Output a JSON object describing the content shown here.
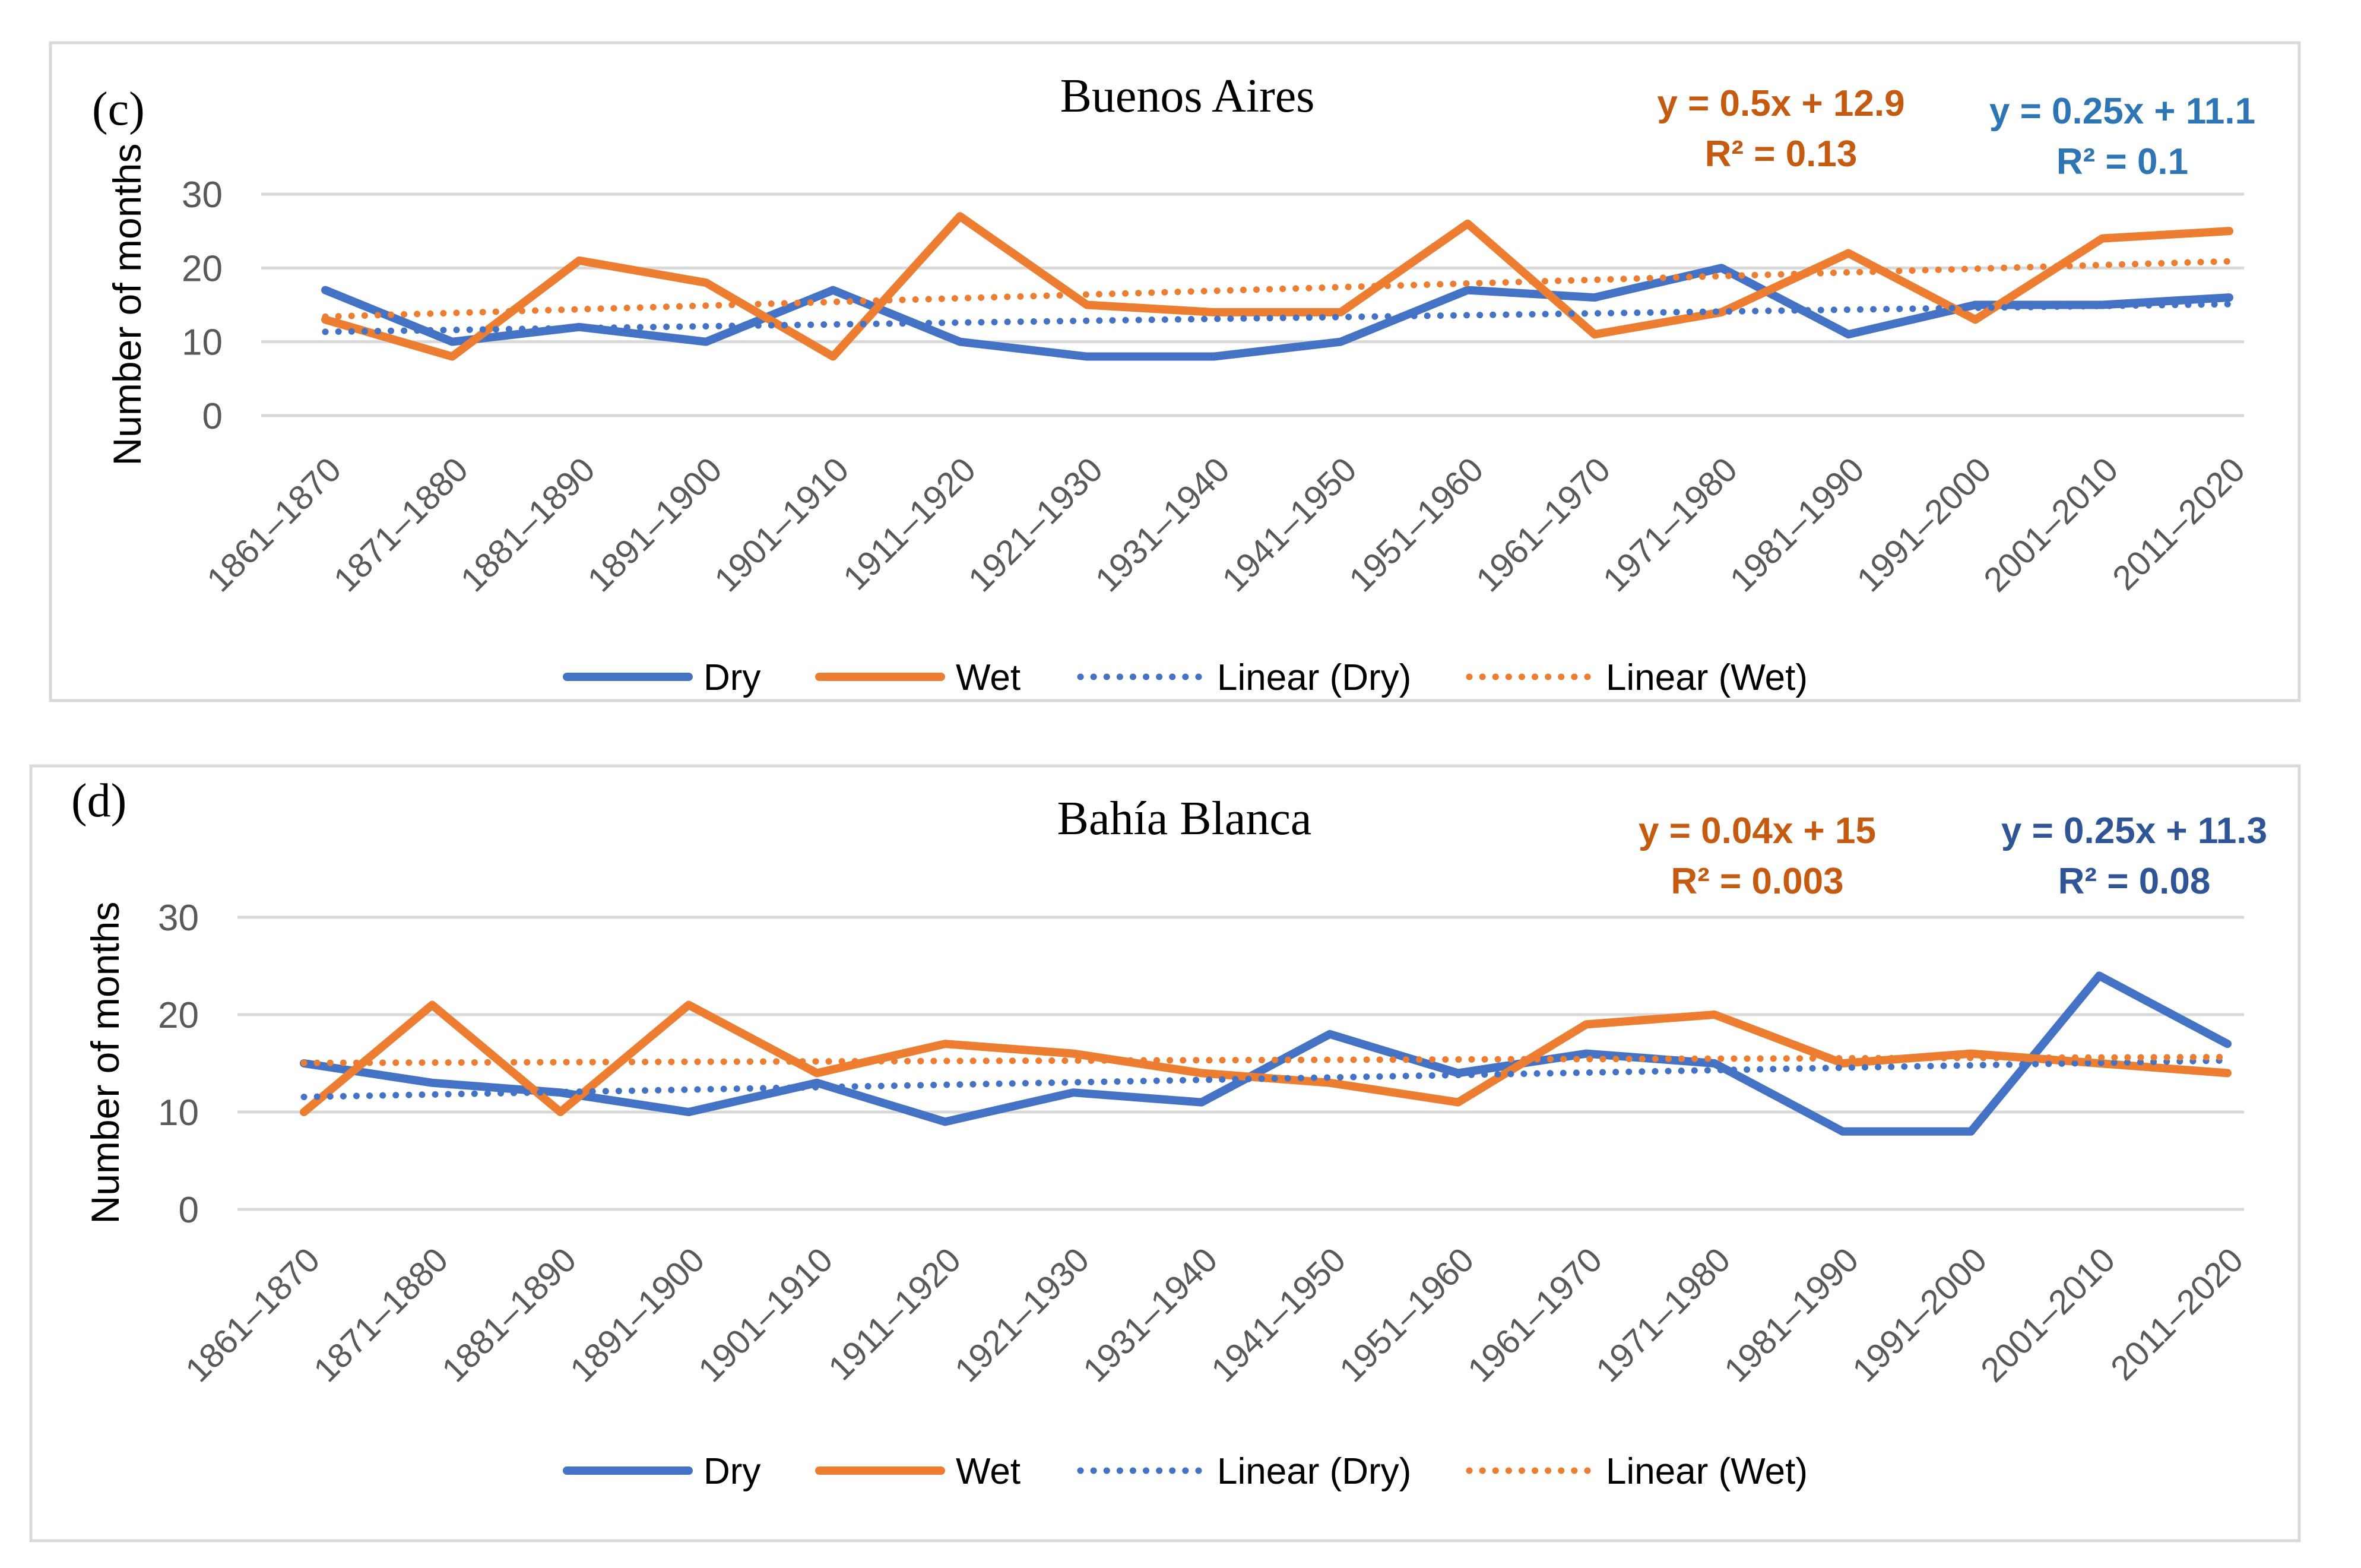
{
  "chart_data": [
    {
      "type": "line",
      "panel_label": "(c)",
      "title": "Buenos Aires",
      "xlabel": "",
      "ylabel": "Number of months",
      "ylim": [
        0,
        30
      ],
      "yticks": [
        "0",
        "10",
        "20",
        "30"
      ],
      "grid": true,
      "legend_position": "bottom",
      "categories": [
        "1861–1870",
        "1871–1880",
        "1881–1890",
        "1891–1900",
        "1901–1910",
        "1911–1920",
        "1921–1930",
        "1931–1940",
        "1941–1950",
        "1951–1960",
        "1961–1970",
        "1971–1980",
        "1981–1990",
        "1991–2000",
        "2001–2010",
        "2011–2020"
      ],
      "series": [
        {
          "name": "Dry",
          "style": "solid",
          "color": "#4472C4",
          "values": [
            17,
            10,
            12,
            10,
            17,
            10,
            8,
            8,
            10,
            17,
            16,
            20,
            11,
            15,
            15,
            16
          ]
        },
        {
          "name": "Wet",
          "style": "solid",
          "color": "#ED7D31",
          "values": [
            13,
            8,
            21,
            18,
            8,
            27,
            15,
            14,
            14,
            26,
            11,
            14,
            22,
            13,
            24,
            25
          ]
        },
        {
          "name": "Linear (Dry)",
          "style": "dotted",
          "color": "#4472C4",
          "trend": {
            "slope": 0.25,
            "intercept": 11.1
          }
        },
        {
          "name": "Linear (Wet)",
          "style": "dotted",
          "color": "#ED7D31",
          "trend": {
            "slope": 0.5,
            "intercept": 12.9
          }
        }
      ],
      "annotations": [
        {
          "line1": "y = 0.5x + 12.9",
          "line2": "R² = 0.13",
          "color": "#C55A11"
        },
        {
          "line1": "y = 0.25x + 11.1",
          "line2": "R² = 0.1",
          "color": "#2E75B6"
        }
      ]
    },
    {
      "type": "line",
      "panel_label": "(d)",
      "title": "Bahía Blanca",
      "xlabel": "",
      "ylabel": "Number of months",
      "ylim": [
        0,
        30
      ],
      "yticks": [
        "0",
        "10",
        "20",
        "30"
      ],
      "grid": true,
      "legend_position": "bottom",
      "categories": [
        "1861–1870",
        "1871–1880",
        "1881–1890",
        "1891–1900",
        "1901–1910",
        "1911–1920",
        "1921–1930",
        "1931–1940",
        "1941–1950",
        "1951–1960",
        "1961–1970",
        "1971–1980",
        "1981–1990",
        "1991–2000",
        "2001–2010",
        "2011–2020"
      ],
      "series": [
        {
          "name": "Dry",
          "style": "solid",
          "color": "#4472C4",
          "values": [
            15,
            13,
            12,
            10,
            13,
            9,
            12,
            11,
            18,
            14,
            16,
            15,
            8,
            8,
            24,
            17
          ]
        },
        {
          "name": "Wet",
          "style": "solid",
          "color": "#ED7D31",
          "values": [
            10,
            21,
            10,
            21,
            14,
            17,
            16,
            14,
            13,
            11,
            19,
            20,
            15,
            16,
            15,
            14
          ]
        },
        {
          "name": "Linear (Dry)",
          "style": "dotted",
          "color": "#4472C4",
          "trend": {
            "slope": 0.25,
            "intercept": 11.3
          }
        },
        {
          "name": "Linear (Wet)",
          "style": "dotted",
          "color": "#ED7D31",
          "trend": {
            "slope": 0.04,
            "intercept": 15
          }
        }
      ],
      "annotations": [
        {
          "line1": "y = 0.04x + 15",
          "line2": "R² = 0.003",
          "color": "#C55A11"
        },
        {
          "line1": "y = 0.25x + 11.3",
          "line2": "R² = 0.08",
          "color": "#2F5597"
        }
      ]
    }
  ]
}
